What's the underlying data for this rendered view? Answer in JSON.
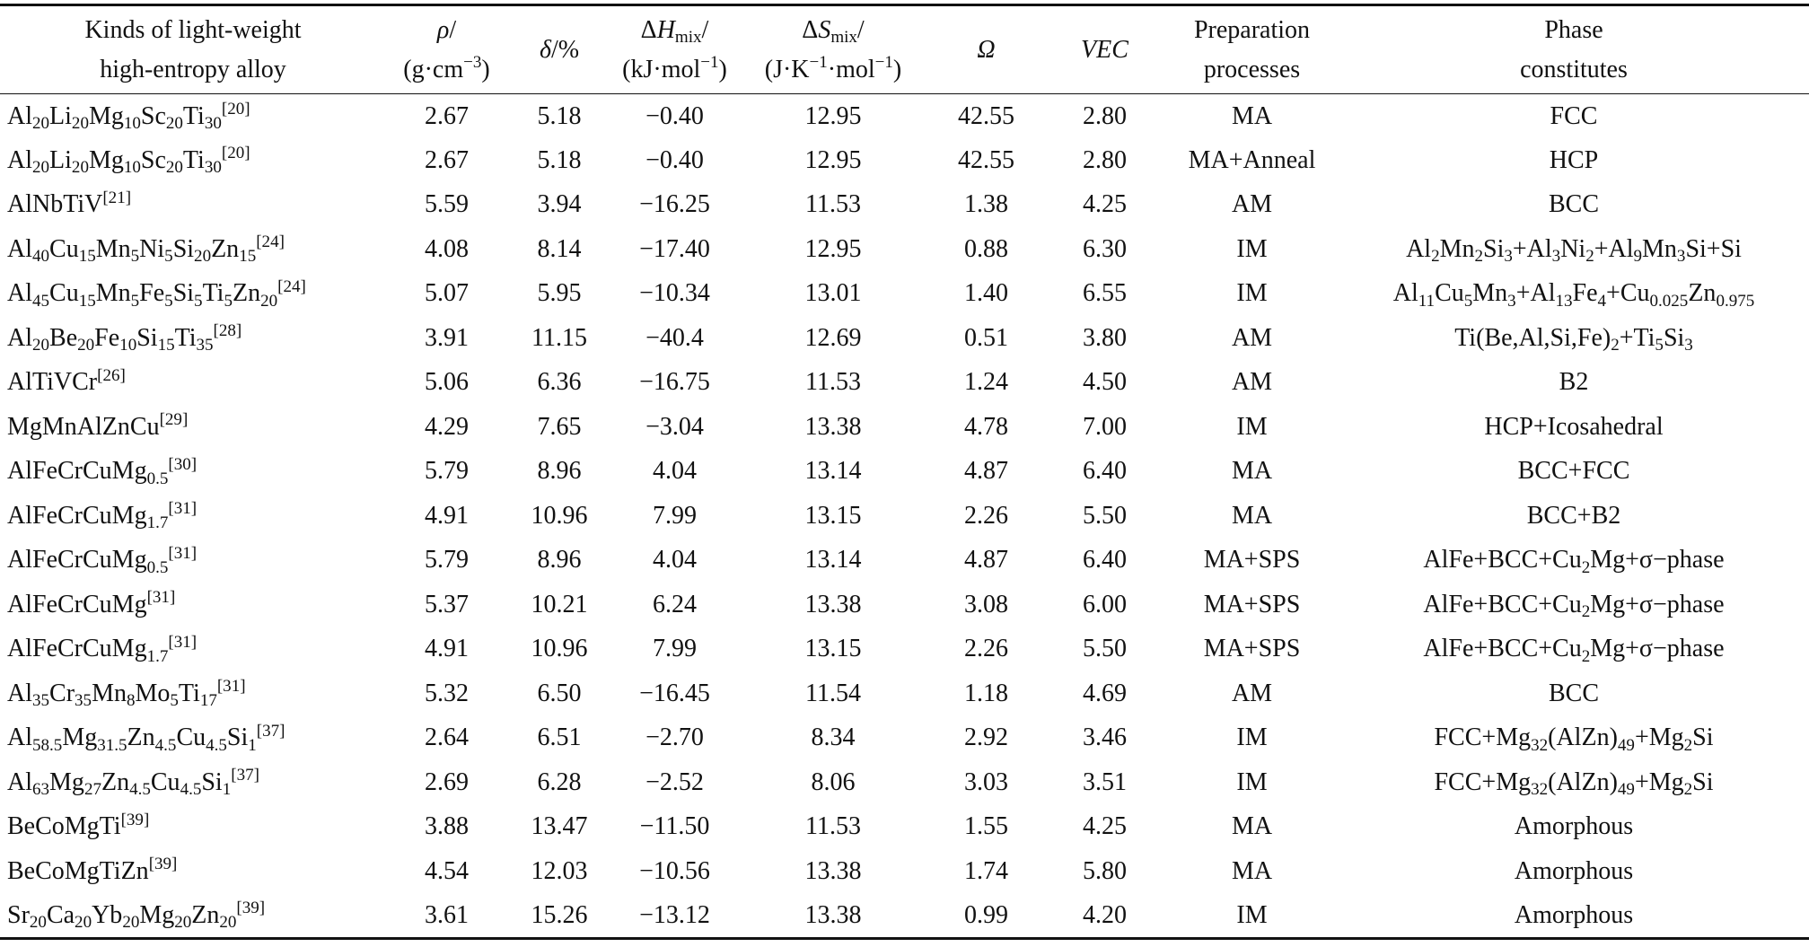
{
  "table": {
    "header": [
      [
        [
          "Kinds of light-weight"
        ],
        [
          "high-entropy alloy"
        ]
      ],
      [
        [
          {
            "i": "ρ"
          },
          "/"
        ],
        [
          "(g·cm",
          {
            "sup": "−3"
          },
          ")"
        ]
      ],
      [
        [
          {
            "i": "δ"
          },
          "/%"
        ]
      ],
      [
        [
          "Δ",
          {
            "i": "H"
          },
          {
            "sub": "mix"
          },
          "/"
        ],
        [
          "(kJ·mol",
          {
            "sup": "−1"
          },
          ")"
        ]
      ],
      [
        [
          "Δ",
          {
            "i": "S"
          },
          {
            "sub": "mix"
          },
          "/"
        ],
        [
          "(J·K",
          {
            "sup": "−1"
          },
          "·mol",
          {
            "sup": "−1"
          },
          ")"
        ]
      ],
      [
        [
          {
            "i": "Ω"
          }
        ]
      ],
      [
        [
          {
            "i": "VEC"
          }
        ]
      ],
      [
        [
          "Preparation"
        ],
        [
          "processes"
        ]
      ],
      [
        [
          "Phase"
        ],
        [
          "constitutes"
        ]
      ]
    ],
    "rows": [
      [
        [
          "Al",
          {
            "sub": "20"
          },
          "Li",
          {
            "sub": "20"
          },
          "Mg",
          {
            "sub": "10"
          },
          "Sc",
          {
            "sub": "20"
          },
          "Ti",
          {
            "sub": "30"
          },
          {
            "sup": "[20]"
          }
        ],
        "2.67",
        "5.18",
        "−0.40",
        "12.95",
        "42.55",
        "2.80",
        "MA",
        "FCC"
      ],
      [
        [
          "Al",
          {
            "sub": "20"
          },
          "Li",
          {
            "sub": "20"
          },
          "Mg",
          {
            "sub": "10"
          },
          "Sc",
          {
            "sub": "20"
          },
          "Ti",
          {
            "sub": "30"
          },
          {
            "sup": "[20]"
          }
        ],
        "2.67",
        "5.18",
        "−0.40",
        "12.95",
        "42.55",
        "2.80",
        "MA+Anneal",
        "HCP"
      ],
      [
        [
          "AlNbTiV",
          {
            "sup": "[21]"
          }
        ],
        "5.59",
        "3.94",
        "−16.25",
        "11.53",
        "1.38",
        "4.25",
        "AM",
        "BCC"
      ],
      [
        [
          "Al",
          {
            "sub": "40"
          },
          "Cu",
          {
            "sub": "15"
          },
          "Mn",
          {
            "sub": "5"
          },
          "Ni",
          {
            "sub": "5"
          },
          "Si",
          {
            "sub": "20"
          },
          "Zn",
          {
            "sub": "15"
          },
          {
            "sup": "[24]"
          }
        ],
        "4.08",
        "8.14",
        "−17.40",
        "12.95",
        "0.88",
        "6.30",
        "IM",
        [
          "Al",
          {
            "sub": "2"
          },
          "Mn",
          {
            "sub": "2"
          },
          "Si",
          {
            "sub": "3"
          },
          "+Al",
          {
            "sub": "3"
          },
          "Ni",
          {
            "sub": "2"
          },
          "+Al",
          {
            "sub": "9"
          },
          "Mn",
          {
            "sub": "3"
          },
          "Si+Si"
        ]
      ],
      [
        [
          "Al",
          {
            "sub": "45"
          },
          "Cu",
          {
            "sub": "15"
          },
          "Mn",
          {
            "sub": "5"
          },
          "Fe",
          {
            "sub": "5"
          },
          "Si",
          {
            "sub": "5"
          },
          "Ti",
          {
            "sub": "5"
          },
          "Zn",
          {
            "sub": "20"
          },
          {
            "sup": "[24]"
          }
        ],
        "5.07",
        "5.95",
        "−10.34",
        "13.01",
        "1.40",
        "6.55",
        "IM",
        [
          "Al",
          {
            "sub": "11"
          },
          "Cu",
          {
            "sub": "5"
          },
          "Mn",
          {
            "sub": "3"
          },
          "+Al",
          {
            "sub": "13"
          },
          "Fe",
          {
            "sub": "4"
          },
          "+Cu",
          {
            "sub": "0.025"
          },
          "Zn",
          {
            "sub": "0.975"
          }
        ]
      ],
      [
        [
          "Al",
          {
            "sub": "20"
          },
          "Be",
          {
            "sub": "20"
          },
          "Fe",
          {
            "sub": "10"
          },
          "Si",
          {
            "sub": "15"
          },
          "Ti",
          {
            "sub": "35"
          },
          {
            "sup": "[28]"
          }
        ],
        "3.91",
        "11.15",
        "−40.4",
        "12.69",
        "0.51",
        "3.80",
        "AM",
        [
          "Ti(Be,Al,Si,Fe)",
          {
            "sub": "2"
          },
          "+Ti",
          {
            "sub": "5"
          },
          "Si",
          {
            "sub": "3"
          }
        ]
      ],
      [
        [
          "AlTiVCr",
          {
            "sup": "[26]"
          }
        ],
        "5.06",
        "6.36",
        "−16.75",
        "11.53",
        "1.24",
        "4.50",
        "AM",
        "B2"
      ],
      [
        [
          "MgMnAlZnCu",
          {
            "sup": "[29]"
          }
        ],
        "4.29",
        "7.65",
        "−3.04",
        "13.38",
        "4.78",
        "7.00",
        "IM",
        "HCP+Icosahedral"
      ],
      [
        [
          "AlFeCrCuMg",
          {
            "sub": "0.5"
          },
          {
            "sup": "[30]"
          }
        ],
        "5.79",
        "8.96",
        "4.04",
        "13.14",
        "4.87",
        "6.40",
        "MA",
        "BCC+FCC"
      ],
      [
        [
          "AlFeCrCuMg",
          {
            "sub": "1.7"
          },
          {
            "sup": "[31]"
          }
        ],
        "4.91",
        "10.96",
        "7.99",
        "13.15",
        "2.26",
        "5.50",
        "MA",
        "BCC+B2"
      ],
      [
        [
          "AlFeCrCuMg",
          {
            "sub": "0.5"
          },
          {
            "sup": "[31]"
          }
        ],
        "5.79",
        "8.96",
        "4.04",
        "13.14",
        "4.87",
        "6.40",
        "MA+SPS",
        [
          "AlFe+BCC+Cu",
          {
            "sub": "2"
          },
          "Mg+σ−phase"
        ]
      ],
      [
        [
          "AlFeCrCuMg",
          {
            "sup": "[31]"
          }
        ],
        "5.37",
        "10.21",
        "6.24",
        "13.38",
        "3.08",
        "6.00",
        "MA+SPS",
        [
          "AlFe+BCC+Cu",
          {
            "sub": "2"
          },
          "Mg+σ−phase"
        ]
      ],
      [
        [
          "AlFeCrCuMg",
          {
            "sub": "1.7"
          },
          {
            "sup": "[31]"
          }
        ],
        "4.91",
        "10.96",
        "7.99",
        "13.15",
        "2.26",
        "5.50",
        "MA+SPS",
        [
          "AlFe+BCC+Cu",
          {
            "sub": "2"
          },
          "Mg+σ−phase"
        ]
      ],
      [
        [
          "Al",
          {
            "sub": "35"
          },
          "Cr",
          {
            "sub": "35"
          },
          "Mn",
          {
            "sub": "8"
          },
          "Mo",
          {
            "sub": "5"
          },
          "Ti",
          {
            "sub": "17"
          },
          {
            "sup": "[31]"
          }
        ],
        "5.32",
        "6.50",
        "−16.45",
        "11.54",
        "1.18",
        "4.69",
        "AM",
        "BCC"
      ],
      [
        [
          "Al",
          {
            "sub": "58.5"
          },
          "Mg",
          {
            "sub": "31.5"
          },
          "Zn",
          {
            "sub": "4.5"
          },
          "Cu",
          {
            "sub": "4.5"
          },
          "Si",
          {
            "sub": "1"
          },
          {
            "sup": "[37]"
          }
        ],
        "2.64",
        "6.51",
        "−2.70",
        "8.34",
        "2.92",
        "3.46",
        "IM",
        [
          "FCC+Mg",
          {
            "sub": "32"
          },
          "(AlZn)",
          {
            "sub": "49"
          },
          "+Mg",
          {
            "sub": "2"
          },
          "Si"
        ]
      ],
      [
        [
          "Al",
          {
            "sub": "63"
          },
          "Mg",
          {
            "sub": "27"
          },
          "Zn",
          {
            "sub": "4.5"
          },
          "Cu",
          {
            "sub": "4.5"
          },
          "Si",
          {
            "sub": "1"
          },
          {
            "sup": "[37]"
          }
        ],
        "2.69",
        "6.28",
        "−2.52",
        "8.06",
        "3.03",
        "3.51",
        "IM",
        [
          "FCC+Mg",
          {
            "sub": "32"
          },
          "(AlZn)",
          {
            "sub": "49"
          },
          "+Mg",
          {
            "sub": "2"
          },
          "Si"
        ]
      ],
      [
        [
          "BeCoMgTi",
          {
            "sup": "[39]"
          }
        ],
        "3.88",
        "13.47",
        "−11.50",
        "11.53",
        "1.55",
        "4.25",
        "MA",
        "Amorphous"
      ],
      [
        [
          "BeCoMgTiZn",
          {
            "sup": "[39]"
          }
        ],
        "4.54",
        "12.03",
        "−10.56",
        "13.38",
        "1.74",
        "5.80",
        "MA",
        "Amorphous"
      ],
      [
        [
          "Sr",
          {
            "sub": "20"
          },
          "Ca",
          {
            "sub": "20"
          },
          "Yb",
          {
            "sub": "20"
          },
          "Mg",
          {
            "sub": "20"
          },
          "Zn",
          {
            "sub": "20"
          },
          {
            "sup": "[39]"
          }
        ],
        "3.61",
        "15.26",
        "−13.12",
        "13.38",
        "0.99",
        "4.20",
        "IM",
        "Amorphous"
      ]
    ]
  }
}
